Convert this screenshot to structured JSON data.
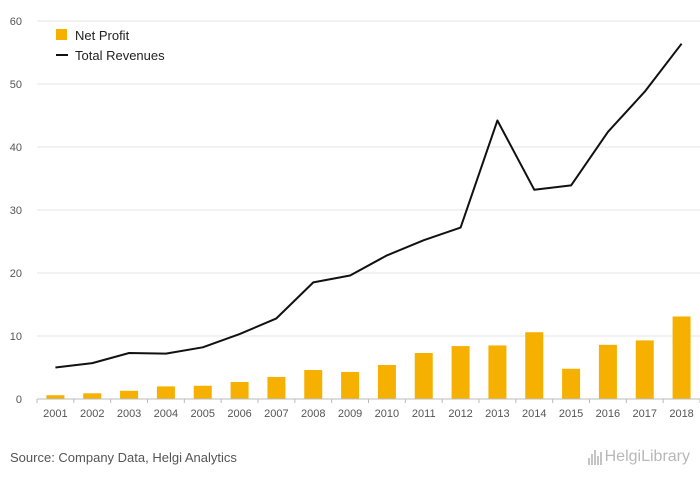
{
  "chart_data": {
    "type": "bar",
    "categories": [
      "2001",
      "2002",
      "2003",
      "2004",
      "2005",
      "2006",
      "2007",
      "2008",
      "2009",
      "2010",
      "2011",
      "2012",
      "2013",
      "2014",
      "2015",
      "2016",
      "2017",
      "2018"
    ],
    "series": [
      {
        "name": "Net Profit",
        "type": "bar",
        "color": "#f5b000",
        "values": [
          0.6,
          0.9,
          1.3,
          2.0,
          2.1,
          2.7,
          3.5,
          4.6,
          4.3,
          5.4,
          7.3,
          8.4,
          8.5,
          10.6,
          4.8,
          8.6,
          9.3,
          13.1
        ]
      },
      {
        "name": "Total Revenues",
        "type": "line",
        "color": "#111111",
        "values": [
          5.0,
          5.7,
          7.3,
          7.2,
          8.2,
          10.3,
          12.8,
          18.5,
          19.6,
          22.8,
          25.2,
          27.2,
          44.2,
          33.2,
          33.9,
          42.4,
          48.8,
          56.4
        ]
      }
    ],
    "yticks": [
      "0",
      "10",
      "20",
      "30",
      "40",
      "50",
      "60"
    ],
    "ylim": [
      0,
      60
    ],
    "grid": true,
    "legend": "top-left"
  },
  "source_text": "Source: Company Data, Helgi Analytics",
  "logo_text": "HelgiLibrary"
}
